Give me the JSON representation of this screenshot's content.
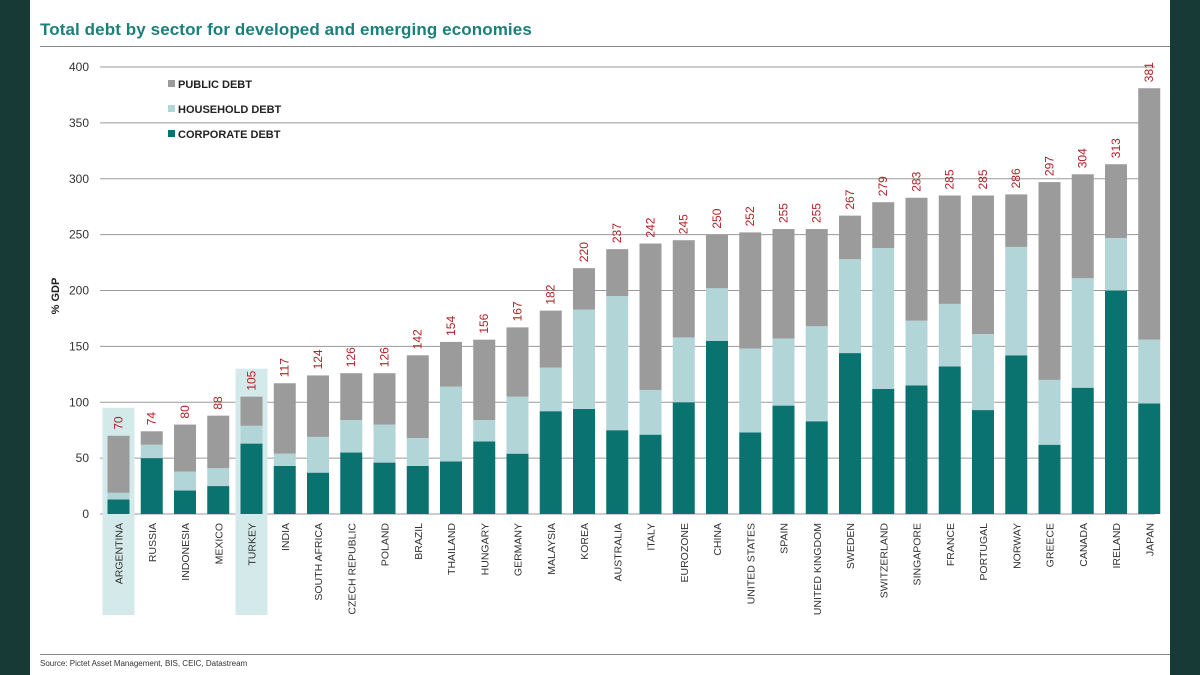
{
  "chart_data": {
    "type": "bar",
    "stacked": true,
    "title": "Total debt by sector for developed and emerging economies",
    "xlabel": "",
    "ylabel": "% GDP",
    "ylim": [
      0,
      400
    ],
    "yticks": [
      0,
      50,
      100,
      150,
      200,
      250,
      300,
      350,
      400
    ],
    "categories": [
      "ARGENTINA",
      "RUSSIA",
      "INDONESIA",
      "MEXICO",
      "TURKEY",
      "INDIA",
      "SOUTH AFRICA",
      "CZECH REPUBLIC",
      "POLAND",
      "BRAZIL",
      "THAILAND",
      "HUNGARY",
      "GERMANY",
      "MALAYSIA",
      "KOREA",
      "AUSTRALIA",
      "ITALY",
      "EUROZONE",
      "CHINA",
      "UNITED STATES",
      "SPAIN",
      "UNITED KINGDOM",
      "SWEDEN",
      "SWITZERLAND",
      "SINGAPORE",
      "FRANCE",
      "PORTUGAL",
      "NORWAY",
      "GREECE",
      "CANADA",
      "IRELAND",
      "JAPAN"
    ],
    "highlighted_categories": [
      "ARGENTINA",
      "TURKEY"
    ],
    "series": [
      {
        "name": "CORPORATE DEBT",
        "color": "#0a7370",
        "values": [
          13,
          50,
          21,
          25,
          63,
          43,
          37,
          55,
          46,
          43,
          47,
          65,
          54,
          92,
          94,
          75,
          71,
          100,
          155,
          73,
          97,
          83,
          144,
          112,
          115,
          132,
          93,
          142,
          62,
          113,
          200,
          99
        ]
      },
      {
        "name": "HOUSEHOLD DEBT",
        "color": "#b2d6d8",
        "values": [
          6,
          12,
          17,
          16,
          16,
          11,
          32,
          29,
          34,
          25,
          67,
          19,
          51,
          39,
          89,
          120,
          40,
          58,
          47,
          75,
          60,
          85,
          84,
          126,
          58,
          56,
          68,
          97,
          58,
          98,
          47,
          57
        ]
      },
      {
        "name": "PUBLIC DEBT",
        "color": "#9b9b9b",
        "values": [
          51,
          12,
          42,
          47,
          26,
          63,
          55,
          42,
          46,
          74,
          40,
          72,
          62,
          51,
          37,
          42,
          131,
          87,
          48,
          104,
          98,
          87,
          39,
          41,
          110,
          97,
          124,
          47,
          177,
          93,
          66,
          225
        ]
      }
    ],
    "totals": [
      70,
      74,
      80,
      88,
      105,
      117,
      124,
      126,
      126,
      142,
      154,
      156,
      167,
      182,
      220,
      237,
      242,
      245,
      250,
      252,
      255,
      255,
      267,
      279,
      283,
      285,
      285,
      286,
      297,
      304,
      313,
      381
    ],
    "total_label_color": "#b32025",
    "legend": [
      "PUBLIC DEBT",
      "HOUSEHOLD DEBT",
      "CORPORATE DEBT"
    ],
    "legend_position": "top-left",
    "grid": true
  },
  "source": "Source: Pictet Asset Management, BIS, CEIC, Datastream"
}
